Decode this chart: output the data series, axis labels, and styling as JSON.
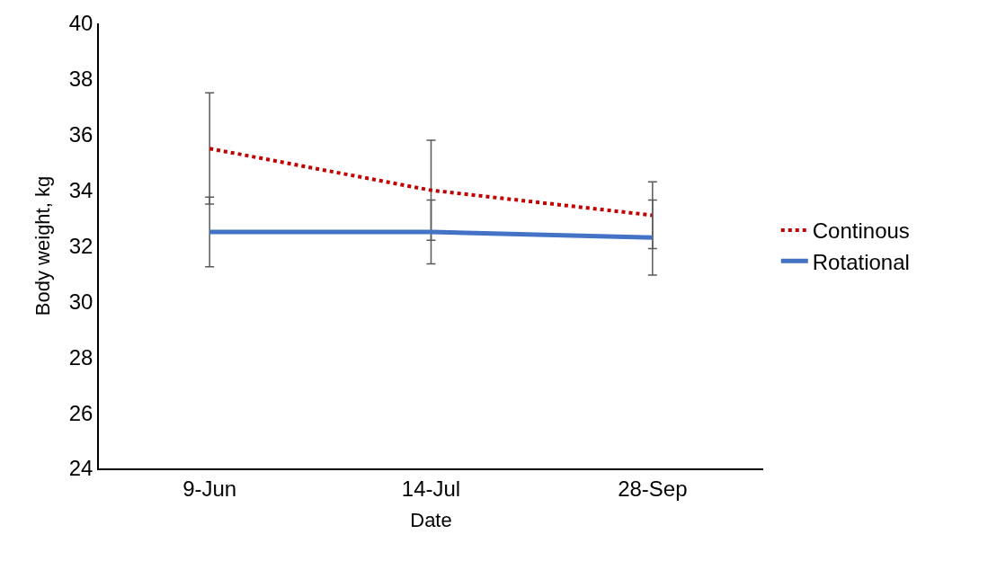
{
  "chart_data": {
    "type": "line",
    "xlabel": "Date",
    "ylabel": "Body weight, kg",
    "categories": [
      "9-Jun",
      "14-Jul",
      "28-Sep"
    ],
    "series": [
      {
        "name": "Continous",
        "color": "#c00000",
        "line_style": "dotted",
        "values": [
          35.5,
          34.0,
          33.1
        ],
        "errors": [
          2.0,
          1.8,
          1.2
        ]
      },
      {
        "name": "Rotational",
        "color": "#4472c4",
        "line_style": "solid",
        "values": [
          32.5,
          32.5,
          32.3
        ],
        "errors": [
          1.25,
          1.15,
          1.35
        ]
      }
    ],
    "ylim": [
      24,
      40
    ],
    "yticks": [
      24,
      26,
      28,
      30,
      32,
      34,
      36,
      38,
      40
    ],
    "legend": "right",
    "marker": "none"
  }
}
